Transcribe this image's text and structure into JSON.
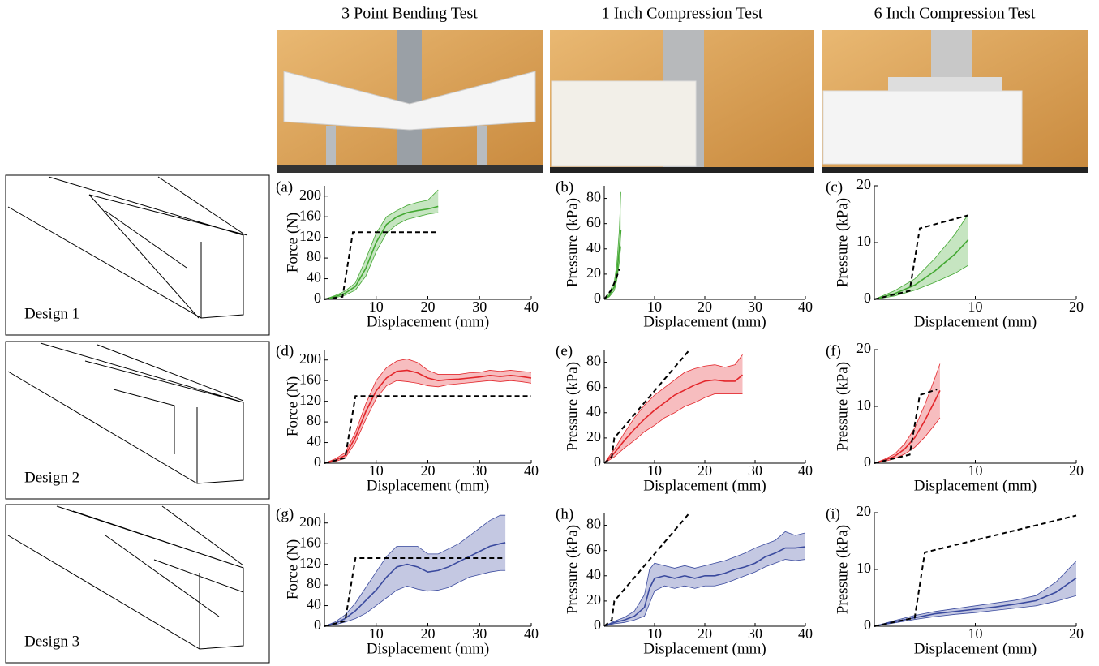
{
  "columns": [
    "3 Point Bending Test",
    "1 Inch Compression Test",
    "6 Inch Compression Test"
  ],
  "designs": [
    "Design 1",
    "Design 2",
    "Design 3"
  ],
  "chart_data": [
    {
      "type": "line",
      "panel": "(a)",
      "xlabel": "Displacement (mm)",
      "ylabel": "Force (N)",
      "xlim": [
        0,
        40
      ],
      "ylim": [
        0,
        220
      ],
      "xticks": [
        10,
        20,
        30,
        40
      ],
      "yticks": [
        0,
        40,
        80,
        120,
        160,
        200
      ],
      "series": [
        {
          "color": "#43a832",
          "x": [
            0,
            2,
            4,
            6,
            8,
            10,
            12,
            14,
            16,
            18,
            20,
            22
          ],
          "values": [
            0,
            5,
            12,
            25,
            60,
            110,
            145,
            160,
            168,
            172,
            175,
            180
          ],
          "lower": [
            0,
            3,
            8,
            18,
            45,
            92,
            128,
            145,
            155,
            160,
            165,
            168
          ],
          "upper": [
            0,
            7,
            16,
            32,
            78,
            128,
            160,
            172,
            182,
            188,
            192,
            212
          ]
        },
        {
          "color": "#000000",
          "dash": true,
          "x": [
            0,
            3.5,
            5.5,
            22
          ],
          "values": [
            0,
            5,
            130,
            130
          ]
        }
      ]
    },
    {
      "type": "line",
      "panel": "(b)",
      "xlabel": "Displacement (mm)",
      "ylabel": "Pressure (kPa)",
      "xlim": [
        0,
        40
      ],
      "ylim": [
        0,
        90
      ],
      "xticks": [
        10,
        20,
        30,
        40
      ],
      "yticks": [
        0,
        20,
        40,
        60,
        80
      ],
      "series": [
        {
          "color": "#43a832",
          "x": [
            0,
            1,
            2,
            2.5,
            3,
            3.3
          ],
          "values": [
            0,
            3,
            10,
            20,
            40,
            55
          ],
          "lower": [
            0,
            2,
            7,
            15,
            30,
            42
          ],
          "upper": [
            0,
            5,
            14,
            28,
            55,
            85
          ]
        },
        {
          "color": "#000000",
          "dash": true,
          "x": [
            0,
            1.5,
            2.5,
            3
          ],
          "values": [
            0,
            8,
            18,
            24
          ]
        }
      ]
    },
    {
      "type": "line",
      "panel": "(c)",
      "xlabel": "Displacement (mm)",
      "ylabel": "Pressure (kPa)",
      "xlim": [
        0,
        20
      ],
      "ylim": [
        0,
        20
      ],
      "xticks": [
        10,
        20
      ],
      "yticks": [
        0,
        10,
        20
      ],
      "series": [
        {
          "color": "#43a832",
          "x": [
            0,
            2,
            4,
            6,
            8,
            9.3
          ],
          "values": [
            0,
            1,
            2.5,
            5,
            8,
            10.5
          ],
          "lower": [
            0,
            0.6,
            1.6,
            3,
            4.6,
            6
          ],
          "upper": [
            0,
            1.5,
            3.6,
            7.2,
            11.5,
            15
          ]
        },
        {
          "color": "#000000",
          "dash": true,
          "x": [
            0,
            3.5,
            4.5,
            9.3
          ],
          "values": [
            0,
            1.5,
            12.5,
            14.8
          ]
        }
      ]
    },
    {
      "type": "line",
      "panel": "(d)",
      "xlabel": "Displacement (mm)",
      "ylabel": "Force (N)",
      "xlim": [
        0,
        40
      ],
      "ylim": [
        0,
        220
      ],
      "xticks": [
        10,
        20,
        30,
        40
      ],
      "yticks": [
        0,
        40,
        80,
        120,
        160,
        200
      ],
      "series": [
        {
          "color": "#e3262b",
          "x": [
            0,
            2,
            4,
            6,
            8,
            10,
            12,
            14,
            16,
            18,
            20,
            22,
            24,
            26,
            28,
            30,
            32,
            34,
            36,
            38,
            40
          ],
          "values": [
            0,
            5,
            15,
            50,
            100,
            140,
            165,
            178,
            180,
            175,
            165,
            160,
            162,
            163,
            165,
            167,
            170,
            168,
            170,
            168,
            165
          ],
          "lower": [
            0,
            3,
            10,
            40,
            85,
            125,
            150,
            160,
            158,
            155,
            150,
            148,
            152,
            154,
            156,
            158,
            160,
            158,
            160,
            158,
            155
          ],
          "upper": [
            0,
            8,
            20,
            60,
            115,
            160,
            185,
            198,
            202,
            195,
            180,
            172,
            172,
            172,
            175,
            176,
            180,
            178,
            180,
            178,
            176
          ]
        },
        {
          "color": "#000000",
          "dash": true,
          "x": [
            0,
            4,
            6,
            40
          ],
          "values": [
            0,
            10,
            130,
            130
          ]
        }
      ]
    },
    {
      "type": "line",
      "panel": "(e)",
      "xlabel": "Displacement (mm)",
      "ylabel": "Pressure (kPa)",
      "xlim": [
        0,
        40
      ],
      "ylim": [
        0,
        90
      ],
      "xticks": [
        10,
        20,
        30,
        40
      ],
      "yticks": [
        0,
        20,
        40,
        60,
        80
      ],
      "series": [
        {
          "color": "#e3262b",
          "x": [
            0,
            2,
            4,
            6,
            8,
            10,
            12,
            14,
            16,
            18,
            20,
            22,
            24,
            26,
            27.5
          ],
          "values": [
            0,
            8,
            18,
            27,
            35,
            42,
            48,
            54,
            58,
            62,
            65,
            66,
            65,
            65,
            70
          ],
          "lower": [
            0,
            5,
            12,
            18,
            25,
            30,
            36,
            40,
            45,
            48,
            52,
            55,
            55,
            55,
            55
          ],
          "upper": [
            0,
            11,
            24,
            36,
            46,
            54,
            60,
            66,
            72,
            75,
            77,
            78,
            76,
            78,
            86
          ]
        },
        {
          "color": "#000000",
          "dash": true,
          "x": [
            0,
            1.5,
            2,
            17
          ],
          "values": [
            0,
            5,
            20,
            90
          ]
        }
      ]
    },
    {
      "type": "line",
      "panel": "(f)",
      "xlabel": "Displacement (mm)",
      "ylabel": "Pressure (kPa)",
      "xlim": [
        0,
        20
      ],
      "ylim": [
        0,
        20
      ],
      "xticks": [
        10,
        20
      ],
      "yticks": [
        0,
        10,
        20
      ],
      "series": [
        {
          "color": "#e3262b",
          "x": [
            0,
            1,
            2,
            3,
            4,
            5,
            6,
            6.5
          ],
          "values": [
            0,
            0.5,
            1.2,
            2.5,
            4.5,
            7.5,
            11,
            12.8
          ],
          "lower": [
            0,
            0.3,
            0.8,
            1.6,
            2.8,
            4.6,
            6.8,
            8
          ],
          "upper": [
            0,
            0.7,
            1.6,
            3.4,
            6.2,
            10.3,
            15,
            17.5
          ]
        },
        {
          "color": "#000000",
          "dash": true,
          "x": [
            0,
            3.5,
            4.5,
            6.2
          ],
          "values": [
            0,
            1.5,
            12,
            13
          ]
        }
      ]
    },
    {
      "type": "line",
      "panel": "(g)",
      "xlabel": "Displacement (mm)",
      "ylabel": "Force (N)",
      "xlim": [
        0,
        40
      ],
      "ylim": [
        0,
        220
      ],
      "xticks": [
        10,
        20,
        30,
        40
      ],
      "yticks": [
        0,
        40,
        80,
        120,
        160,
        200
      ],
      "series": [
        {
          "color": "#3a4a9e",
          "x": [
            0,
            2,
            4,
            6,
            8,
            10,
            12,
            14,
            16,
            18,
            20,
            22,
            24,
            26,
            28,
            30,
            32,
            34,
            35
          ],
          "values": [
            0,
            5,
            15,
            30,
            50,
            70,
            95,
            115,
            120,
            115,
            105,
            108,
            115,
            125,
            135,
            145,
            155,
            160,
            162
          ],
          "lower": [
            0,
            3,
            8,
            15,
            25,
            40,
            55,
            70,
            78,
            72,
            68,
            70,
            75,
            85,
            95,
            100,
            105,
            108,
            108
          ],
          "upper": [
            0,
            8,
            22,
            45,
            75,
            105,
            135,
            155,
            155,
            155,
            140,
            140,
            150,
            160,
            175,
            190,
            205,
            215,
            215
          ]
        },
        {
          "color": "#000000",
          "dash": true,
          "x": [
            0,
            4,
            6,
            35
          ],
          "values": [
            0,
            10,
            132,
            132
          ]
        }
      ]
    },
    {
      "type": "line",
      "panel": "(h)",
      "xlabel": "Displacement (mm)",
      "ylabel": "Pressure (kPa)",
      "xlim": [
        0,
        40
      ],
      "ylim": [
        0,
        90
      ],
      "xticks": [
        10,
        20,
        30,
        40
      ],
      "yticks": [
        0,
        20,
        40,
        60,
        80
      ],
      "series": [
        {
          "color": "#3a4a9e",
          "x": [
            0,
            2,
            4,
            6,
            8,
            9,
            10,
            12,
            14,
            16,
            18,
            20,
            22,
            24,
            26,
            28,
            30,
            32,
            34,
            36,
            38,
            40
          ],
          "values": [
            0,
            3,
            5,
            8,
            15,
            30,
            38,
            40,
            38,
            40,
            38,
            40,
            40,
            42,
            45,
            47,
            50,
            55,
            58,
            62,
            62,
            63
          ],
          "lower": [
            0,
            2,
            3,
            5,
            8,
            18,
            28,
            32,
            30,
            32,
            30,
            32,
            32,
            34,
            37,
            40,
            43,
            47,
            50,
            53,
            52,
            53
          ],
          "upper": [
            0,
            4,
            7,
            12,
            25,
            45,
            50,
            48,
            46,
            48,
            46,
            48,
            50,
            52,
            55,
            58,
            62,
            65,
            68,
            75,
            72,
            74
          ]
        },
        {
          "color": "#000000",
          "dash": true,
          "x": [
            0,
            1.5,
            2,
            17
          ],
          "values": [
            0,
            5,
            20,
            90
          ]
        }
      ]
    },
    {
      "type": "line",
      "panel": "(i)",
      "xlabel": "Displacement (mm)",
      "ylabel": "Pressure (kPa)",
      "xlim": [
        0,
        20
      ],
      "ylim": [
        0,
        20
      ],
      "xticks": [
        10,
        20
      ],
      "yticks": [
        0,
        10,
        20
      ],
      "series": [
        {
          "color": "#3a4a9e",
          "x": [
            0,
            2,
            4,
            6,
            8,
            10,
            12,
            14,
            16,
            18,
            20
          ],
          "values": [
            0,
            0.8,
            1.5,
            2.2,
            2.6,
            3,
            3.4,
            3.9,
            4.5,
            6,
            8.5
          ],
          "lower": [
            0,
            0.6,
            1.2,
            1.7,
            2.1,
            2.4,
            2.8,
            3.2,
            3.6,
            4.4,
            5.4
          ],
          "upper": [
            0,
            1,
            1.9,
            2.6,
            3.1,
            3.6,
            4.1,
            4.6,
            5.4,
            7.8,
            11.5
          ]
        },
        {
          "color": "#000000",
          "dash": true,
          "x": [
            0,
            4,
            5,
            20
          ],
          "values": [
            0,
            1.5,
            13,
            19.5
          ]
        }
      ]
    }
  ]
}
